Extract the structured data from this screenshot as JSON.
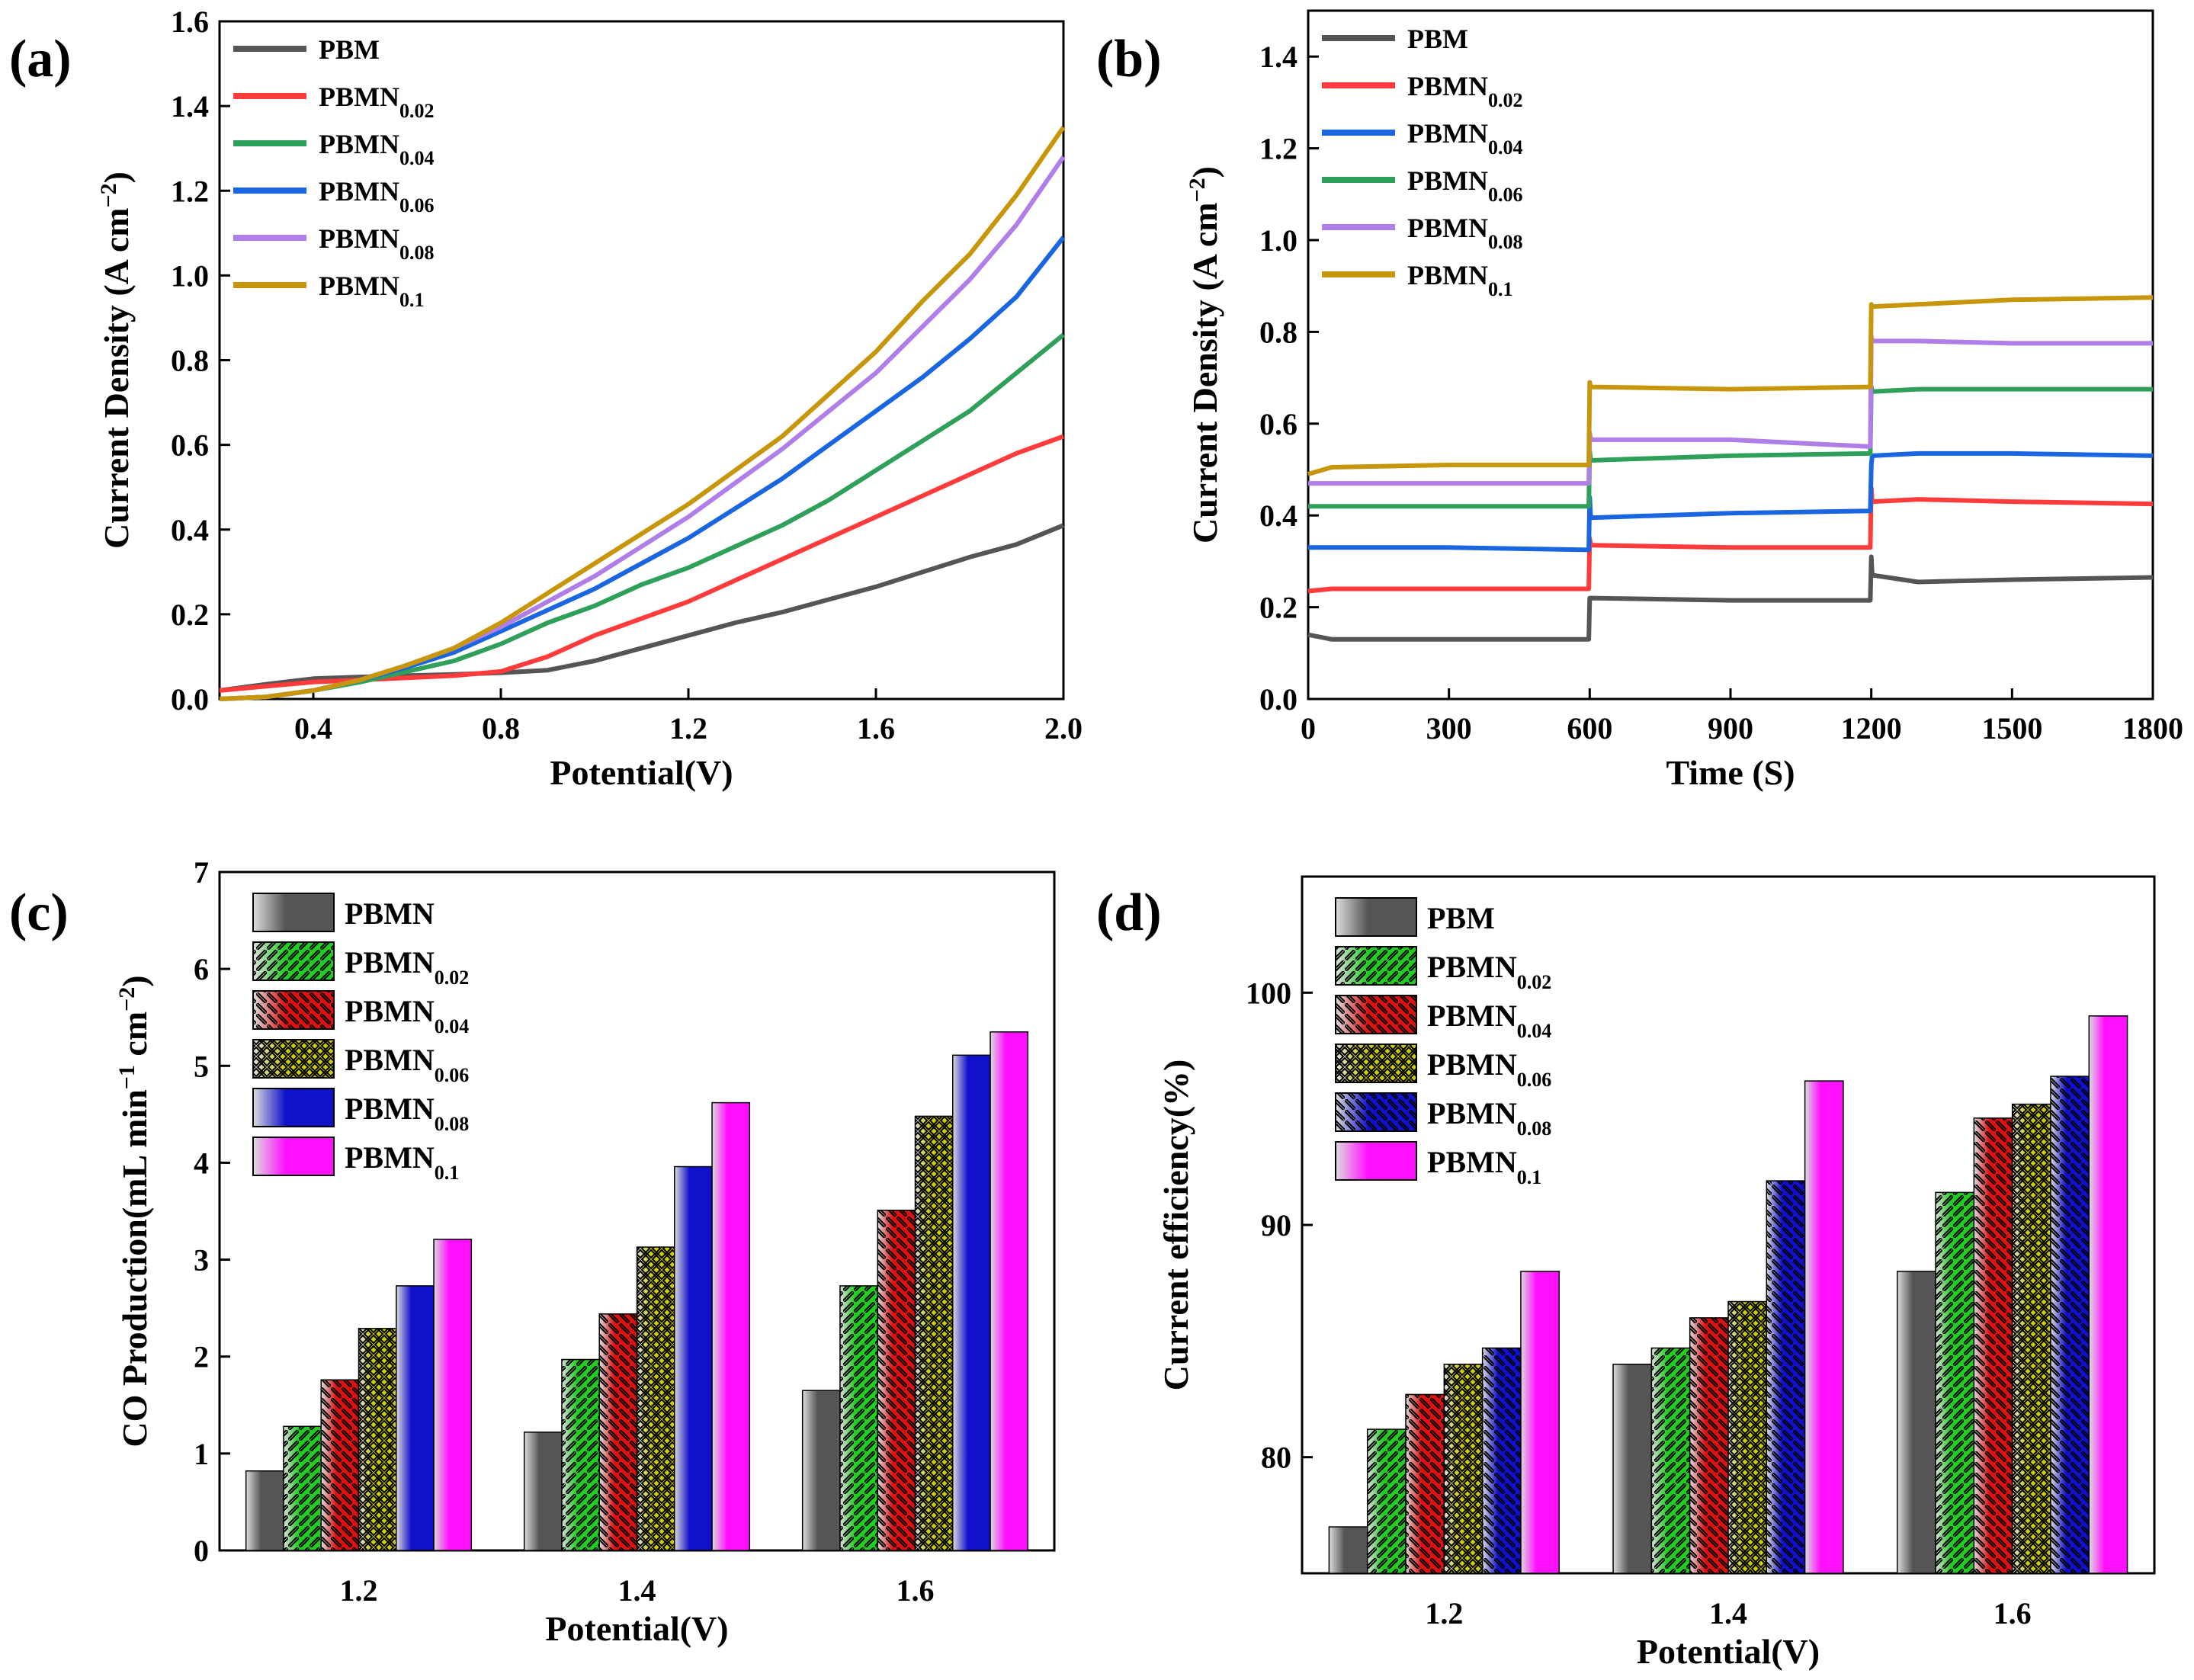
{
  "chart_data": [
    {
      "id": "a",
      "panel_label": "(a)",
      "type": "line",
      "xlabel": "Potential(V)",
      "ylabel": "Current Density (A cm",
      "ylabel_sup": "−2",
      "ylabel_close": ")",
      "xlim": [
        0.2,
        2.0
      ],
      "ylim": [
        0.0,
        1.6
      ],
      "xticks": [
        0.4,
        0.8,
        1.2,
        1.6,
        2.0
      ],
      "xtick_labels": [
        "0.4",
        "0.8",
        "1.2",
        "1.6",
        "2.0"
      ],
      "yticks": [
        0.0,
        0.2,
        0.4,
        0.6,
        0.8,
        1.0,
        1.2,
        1.4,
        1.6
      ],
      "ytick_labels": [
        "0.0",
        "0.2",
        "0.4",
        "0.6",
        "0.8",
        "1.0",
        "1.2",
        "1.4",
        "1.6"
      ],
      "x": [
        0.2,
        0.3,
        0.4,
        0.5,
        0.6,
        0.7,
        0.8,
        0.9,
        1.0,
        1.1,
        1.2,
        1.3,
        1.4,
        1.5,
        1.6,
        1.7,
        1.8,
        1.9,
        2.0
      ],
      "series": [
        {
          "name": "PBM",
          "base": "PBM",
          "sub": "",
          "color": "#555555",
          "values": [
            0.02,
            0.035,
            0.048,
            0.052,
            0.055,
            0.058,
            0.062,
            0.068,
            0.09,
            0.12,
            0.15,
            0.18,
            0.205,
            0.235,
            0.265,
            0.3,
            0.335,
            0.365,
            0.41
          ]
        },
        {
          "name": "PBMN0.02",
          "base": "PBMN",
          "sub": "0.02",
          "color": "#ff3b3b",
          "values": [
            0.02,
            0.03,
            0.04,
            0.045,
            0.05,
            0.055,
            0.065,
            0.1,
            0.15,
            0.19,
            0.23,
            0.28,
            0.33,
            0.38,
            0.43,
            0.48,
            0.53,
            0.58,
            0.62
          ]
        },
        {
          "name": "PBMN0.04",
          "base": "PBMN",
          "sub": "0.04",
          "color": "#2ea05a",
          "values": [
            0.0,
            0.005,
            0.02,
            0.04,
            0.065,
            0.09,
            0.13,
            0.18,
            0.22,
            0.27,
            0.31,
            0.36,
            0.41,
            0.47,
            0.54,
            0.61,
            0.68,
            0.77,
            0.86
          ]
        },
        {
          "name": "PBMN0.06",
          "base": "PBMN",
          "sub": "0.06",
          "color": "#1a66e0",
          "values": [
            0.0,
            0.005,
            0.02,
            0.045,
            0.075,
            0.11,
            0.16,
            0.21,
            0.26,
            0.32,
            0.38,
            0.45,
            0.52,
            0.6,
            0.68,
            0.76,
            0.85,
            0.95,
            1.09
          ]
        },
        {
          "name": "PBMN0.08",
          "base": "PBMN",
          "sub": "0.08",
          "color": "#b07ee8",
          "values": [
            0.0,
            0.005,
            0.02,
            0.045,
            0.08,
            0.12,
            0.17,
            0.23,
            0.29,
            0.36,
            0.43,
            0.51,
            0.59,
            0.68,
            0.77,
            0.88,
            0.99,
            1.12,
            1.28
          ]
        },
        {
          "name": "PBMN0.1",
          "base": "PBMN",
          "sub": "0.1",
          "color": "#c8960a",
          "values": [
            0.0,
            0.005,
            0.02,
            0.045,
            0.08,
            0.12,
            0.18,
            0.25,
            0.32,
            0.39,
            0.46,
            0.54,
            0.62,
            0.72,
            0.82,
            0.94,
            1.05,
            1.19,
            1.35
          ]
        }
      ]
    },
    {
      "id": "b",
      "panel_label": "(b)",
      "type": "line",
      "xlabel": "Time (S)",
      "ylabel": "Current Density (A cm",
      "ylabel_sup": "−2",
      "ylabel_close": ")",
      "xlim": [
        0,
        1800
      ],
      "ylim": [
        0.0,
        1.5
      ],
      "xticks": [
        0,
        300,
        600,
        900,
        1200,
        1500,
        1800
      ],
      "xtick_labels": [
        "0",
        "300",
        "600",
        "900",
        "1200",
        "1500",
        "1800"
      ],
      "yticks": [
        0.0,
        0.2,
        0.4,
        0.6,
        0.8,
        1.0,
        1.2,
        1.4
      ],
      "ytick_labels": [
        "0.0",
        "0.2",
        "0.4",
        "0.6",
        "0.8",
        "1.0",
        "1.2",
        "1.4"
      ],
      "x": [
        0,
        50,
        300,
        598,
        600,
        602,
        900,
        1198,
        1200,
        1202,
        1300,
        1500,
        1800
      ],
      "series": [
        {
          "name": "PBM",
          "base": "PBM",
          "sub": "",
          "color": "#555555",
          "values": [
            0.14,
            0.13,
            0.13,
            0.13,
            0.22,
            0.22,
            0.215,
            0.215,
            0.31,
            0.27,
            0.255,
            0.26,
            0.265
          ]
        },
        {
          "name": "PBMN0.02",
          "base": "PBMN",
          "sub": "0.02",
          "color": "#ff3b3b",
          "values": [
            0.235,
            0.24,
            0.24,
            0.24,
            0.35,
            0.335,
            0.33,
            0.33,
            0.46,
            0.43,
            0.435,
            0.43,
            0.425
          ]
        },
        {
          "name": "PBMN0.04",
          "base": "PBMN",
          "sub": "0.04",
          "color": "#1a66e0",
          "values": [
            0.33,
            0.33,
            0.33,
            0.325,
            0.44,
            0.395,
            0.405,
            0.41,
            0.51,
            0.53,
            0.535,
            0.535,
            0.53
          ]
        },
        {
          "name": "PBMN0.06",
          "base": "PBMN",
          "sub": "0.06",
          "color": "#2ea05a",
          "values": [
            0.42,
            0.42,
            0.42,
            0.42,
            0.54,
            0.52,
            0.53,
            0.535,
            0.68,
            0.67,
            0.675,
            0.675,
            0.675
          ]
        },
        {
          "name": "PBMN0.08",
          "base": "PBMN",
          "sub": "0.08",
          "color": "#b07ee8",
          "values": [
            0.47,
            0.47,
            0.47,
            0.47,
            0.58,
            0.565,
            0.565,
            0.55,
            0.79,
            0.78,
            0.78,
            0.775,
            0.775
          ]
        },
        {
          "name": "PBMN0.1",
          "base": "PBMN",
          "sub": "0.1",
          "color": "#c8960a",
          "values": [
            0.49,
            0.505,
            0.51,
            0.51,
            0.69,
            0.68,
            0.675,
            0.68,
            0.86,
            0.855,
            0.86,
            0.87,
            0.875
          ]
        }
      ]
    },
    {
      "id": "c",
      "panel_label": "(c)",
      "type": "bar",
      "xlabel": "Potential(V)",
      "ylabel": "CO Production(mL min",
      "ylabel_sup1": "−1",
      "ylabel_mid": " cm",
      "ylabel_sup2": "−2",
      "ylabel_close": ")",
      "categories": [
        "1.2",
        "1.4",
        "1.6"
      ],
      "ylim": [
        0,
        7
      ],
      "yticks": [
        0,
        1,
        2,
        3,
        4,
        5,
        6,
        7
      ],
      "ytick_labels": [
        "0",
        "1",
        "2",
        "3",
        "4",
        "5",
        "6",
        "7"
      ],
      "series": [
        {
          "name": "PBMN",
          "base": "PBMN",
          "sub": "",
          "color": "#555555",
          "pattern": "none",
          "values": [
            0.82,
            1.22,
            1.65
          ]
        },
        {
          "name": "PBMN0.02",
          "base": "PBMN",
          "sub": "0.02",
          "color": "#22cc22",
          "pattern": "diag-right",
          "values": [
            1.28,
            1.97,
            2.73
          ]
        },
        {
          "name": "PBMN0.04",
          "base": "PBMN",
          "sub": "0.04",
          "color": "#dd1111",
          "pattern": "diag-left",
          "values": [
            1.76,
            2.44,
            3.51
          ]
        },
        {
          "name": "PBMN0.06",
          "base": "PBMN",
          "sub": "0.06",
          "color": "#cccc00",
          "pattern": "cross",
          "values": [
            2.29,
            3.13,
            4.48
          ]
        },
        {
          "name": "PBMN0.08",
          "base": "PBMN",
          "sub": "0.08",
          "color": "#1111cc",
          "pattern": "none",
          "values": [
            2.73,
            3.96,
            5.11
          ]
        },
        {
          "name": "PBMN0.1",
          "base": "PBMN",
          "sub": "0.1",
          "color": "#ff11ff",
          "pattern": "none",
          "values": [
            3.21,
            4.62,
            5.35
          ]
        }
      ]
    },
    {
      "id": "d",
      "panel_label": "(d)",
      "type": "bar",
      "xlabel": "Potential(V)",
      "ylabel": "Current efficiency(%)",
      "categories": [
        "1.2",
        "1.4",
        "1.6"
      ],
      "ylim": [
        75,
        105
      ],
      "yticks": [
        80,
        90,
        100
      ],
      "ytick_labels": [
        "80",
        "90",
        "100"
      ],
      "series": [
        {
          "name": "PBM",
          "base": "PBM",
          "sub": "",
          "color": "#555555",
          "pattern": "none",
          "values": [
            77.0,
            84.0,
            88.0
          ]
        },
        {
          "name": "PBMN0.02",
          "base": "PBMN",
          "sub": "0.02",
          "color": "#22cc22",
          "pattern": "diag-right",
          "values": [
            81.2,
            84.7,
            91.4
          ]
        },
        {
          "name": "PBMN0.04",
          "base": "PBMN",
          "sub": "0.04",
          "color": "#dd1111",
          "pattern": "diag-left",
          "values": [
            82.7,
            86.0,
            94.6
          ]
        },
        {
          "name": "PBMN0.06",
          "base": "PBMN",
          "sub": "0.06",
          "color": "#cccc00",
          "pattern": "cross",
          "values": [
            84.0,
            86.7,
            95.2
          ]
        },
        {
          "name": "PBMN0.08",
          "base": "PBMN",
          "sub": "0.08",
          "color": "#1111cc",
          "pattern": "diag-left",
          "values": [
            84.7,
            91.9,
            96.4
          ]
        },
        {
          "name": "PBMN0.1",
          "base": "PBMN",
          "sub": "0.1",
          "color": "#ff11ff",
          "pattern": "none",
          "values": [
            88.0,
            96.2,
            99.0
          ]
        }
      ]
    }
  ]
}
